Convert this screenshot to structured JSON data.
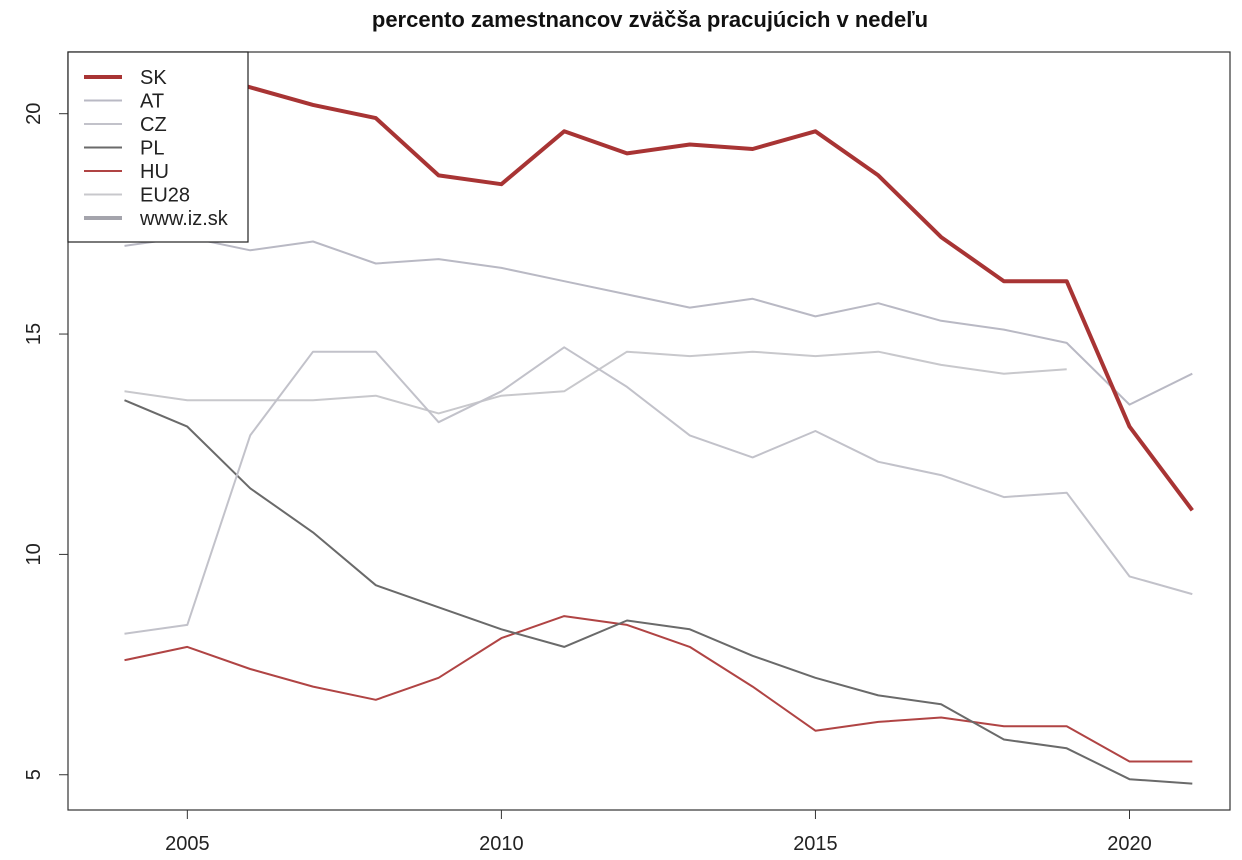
{
  "chart_data": {
    "type": "line",
    "title": "percento zamestnancov zväčša pracujúcich v nedeľu",
    "xlabel": "",
    "ylabel": "",
    "xlim": [
      2003.1,
      2021.6
    ],
    "ylim": [
      4.2,
      21.4
    ],
    "x_ticks": [
      2005,
      2010,
      2015,
      2020
    ],
    "y_ticks": [
      5,
      10,
      15,
      20
    ],
    "grid": false,
    "legend_position": "top-left",
    "x": [
      2004,
      2005,
      2006,
      2007,
      2008,
      2009,
      2010,
      2011,
      2012,
      2013,
      2014,
      2015,
      2016,
      2017,
      2018,
      2019,
      2020,
      2021
    ],
    "series": [
      {
        "name": "SK",
        "color": "#a83434",
        "width": 4,
        "values": [
          20.5,
          21.0,
          20.6,
          20.2,
          19.9,
          18.6,
          18.4,
          19.6,
          19.1,
          19.3,
          19.2,
          19.6,
          18.6,
          17.2,
          16.2,
          16.2,
          12.9,
          11.0
        ]
      },
      {
        "name": "AT",
        "color": "#b9b9c4",
        "width": 2,
        "values": [
          17.0,
          17.2,
          16.9,
          17.1,
          16.6,
          16.7,
          16.5,
          16.2,
          15.9,
          15.6,
          15.8,
          15.4,
          15.7,
          15.3,
          15.1,
          14.8,
          13.4,
          14.1
        ]
      },
      {
        "name": "CZ",
        "color": "#c2c2ca",
        "width": 2,
        "values": [
          8.2,
          8.4,
          12.7,
          14.6,
          14.6,
          13.0,
          13.7,
          14.7,
          13.8,
          12.7,
          12.2,
          12.8,
          12.1,
          11.8,
          11.3,
          11.4,
          9.5,
          9.1
        ]
      },
      {
        "name": "PL",
        "color": "#6a6a6a",
        "width": 2,
        "values": [
          13.5,
          12.9,
          11.5,
          10.5,
          9.3,
          8.8,
          8.3,
          7.9,
          8.5,
          8.3,
          7.7,
          7.2,
          6.8,
          6.6,
          5.8,
          5.6,
          4.9,
          4.8
        ]
      },
      {
        "name": "HU",
        "color": "#b04444",
        "width": 2,
        "values": [
          7.6,
          7.9,
          7.4,
          7.0,
          6.7,
          7.2,
          8.1,
          8.6,
          8.4,
          7.9,
          7.0,
          6.0,
          6.2,
          6.3,
          6.1,
          6.1,
          5.3,
          5.3
        ]
      },
      {
        "name": "EU28",
        "color": "#c8c8cc",
        "width": 2,
        "values": [
          13.7,
          13.5,
          13.5,
          13.5,
          13.6,
          13.2,
          13.6,
          13.7,
          14.6,
          14.5,
          14.6,
          14.5,
          14.6,
          14.3,
          14.1,
          14.2,
          null,
          null
        ]
      }
    ],
    "legend_extra": {
      "name": "www.iz.sk",
      "color": "#a4a4ac",
      "width": 4
    }
  }
}
